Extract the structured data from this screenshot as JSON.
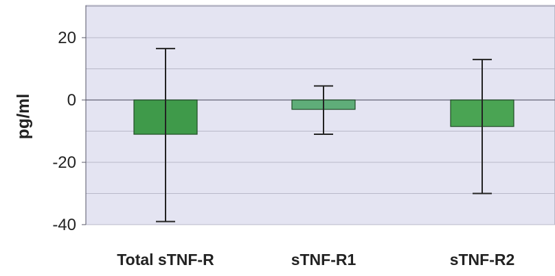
{
  "chart_data": {
    "type": "bar",
    "categories": [
      "Total sTNF-R",
      "sTNF-R1",
      "sTNF-R2"
    ],
    "values": [
      -11,
      -3,
      -8.5
    ],
    "error_bars": [
      {
        "high": 16.5,
        "low": -39
      },
      {
        "high": 4.5,
        "low": -11
      },
      {
        "high": 13,
        "low": -30
      }
    ],
    "ylabel": "pg/ml",
    "ylim": [
      -40,
      30
    ],
    "yticks": [
      20,
      0,
      -20,
      -40
    ],
    "ytick_labels": [
      "20",
      "0",
      "-20",
      "-40"
    ],
    "grid": true,
    "colors": {
      "plot_background": "#e4e4f2",
      "gridline": "#b8b8c8",
      "zero_line": "#777788",
      "bar_fills": [
        "#3f9a4a",
        "#5fad79",
        "#4aa453"
      ],
      "bar_stroke": "#1e4a24",
      "error_bar": "#222222"
    }
  }
}
